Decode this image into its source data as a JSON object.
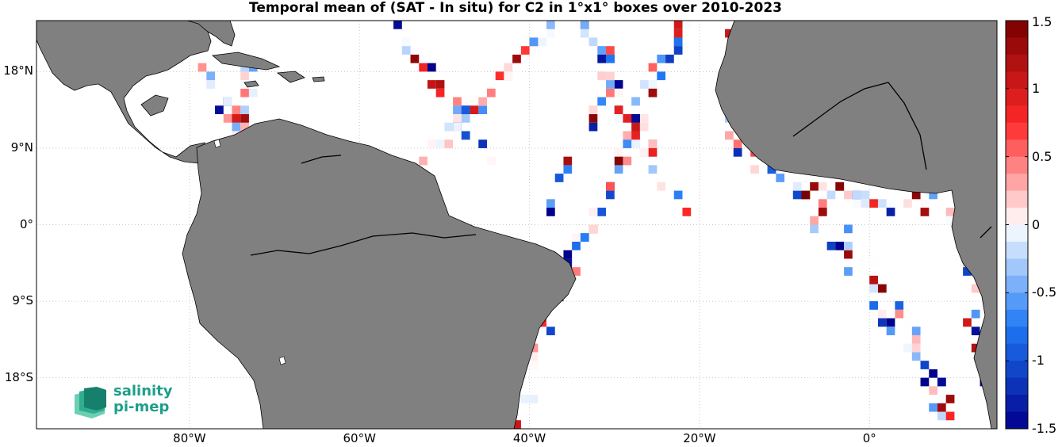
{
  "title": "Temporal mean of (SAT - In situ) for C2 in 1°x1° boxes over 2010-2023",
  "map": {
    "lon_range": [
      -98,
      15
    ],
    "lat_range": [
      -24,
      24
    ],
    "lat_ticks": [
      {
        "value": 18,
        "label": "18°N"
      },
      {
        "value": 9,
        "label": "9°N"
      },
      {
        "value": 0,
        "label": "0°"
      },
      {
        "value": -9,
        "label": "9°S"
      },
      {
        "value": -18,
        "label": "18°S"
      }
    ],
    "lon_ticks": [
      {
        "value": -80,
        "label": "80°W"
      },
      {
        "value": -60,
        "label": "60°W"
      },
      {
        "value": -40,
        "label": "40°W"
      },
      {
        "value": -20,
        "label": "20°W"
      },
      {
        "value": 0,
        "label": "0°"
      }
    ],
    "grid": true,
    "land_color": "#808080",
    "ocean_color": "#ffffff"
  },
  "colorbar": {
    "range": [
      -1.5,
      1.5
    ],
    "tick_labels": [
      "1.5",
      "1",
      "0.5",
      "0",
      "-0.5",
      "-1",
      "-1.5"
    ],
    "colormap": "blue-white-red"
  },
  "logo": {
    "line1": "salinity",
    "line2": "pi-mep",
    "color": "#1f9e8a"
  },
  "tracks": [
    {
      "name": "caribbean",
      "lon": [
        -78,
        -76,
        -74,
        -73
      ],
      "lat": [
        18,
        14,
        11,
        20
      ],
      "spread": 2
    },
    {
      "name": "atlantic-north-1",
      "lon": [
        -56,
        -53,
        -49,
        -47,
        -44
      ],
      "lat": [
        24,
        20,
        14,
        10,
        6
      ],
      "spread": 1
    },
    {
      "name": "atlantic-north-2",
      "lon": [
        -52,
        -46,
        -42,
        -40,
        -37
      ],
      "lat": [
        8,
        14,
        18,
        21,
        24
      ],
      "spread": 2
    },
    {
      "name": "atlantic-mid",
      "lon": [
        -34,
        -31,
        -29,
        -26,
        -24,
        -22
      ],
      "lat": [
        24,
        20,
        14,
        9,
        5,
        2
      ],
      "spread": 2
    },
    {
      "name": "atlantic-diag",
      "lon": [
        -22,
        -25,
        -28,
        -31,
        -34,
        -37
      ],
      "lat": [
        24,
        18,
        10,
        3,
        -2,
        -8
      ],
      "spread": 2
    },
    {
      "name": "brazil-coast",
      "lon": [
        -39,
        -36,
        -33,
        -31,
        -30
      ],
      "lat": [
        0,
        5,
        11,
        15,
        20
      ],
      "spread": 1
    },
    {
      "name": "south-atlantic",
      "lon": [
        -37,
        -38,
        -39,
        -40,
        -41
      ],
      "lat": [
        -8,
        -12,
        -16,
        -20,
        -24
      ],
      "spread": 1
    },
    {
      "name": "equator-east",
      "lon": [
        -12,
        -8,
        -4,
        0,
        4,
        8,
        10
      ],
      "lat": [
        6,
        4,
        4,
        3,
        2,
        3,
        1
      ],
      "spread": 2
    },
    {
      "name": "gulf-guinea-1",
      "lon": [
        -7,
        -4,
        -1,
        2,
        5,
        8
      ],
      "lat": [
        0,
        -2,
        -6,
        -11,
        -15,
        -22
      ],
      "spread": 1
    },
    {
      "name": "gulf-guinea-2",
      "lon": [
        -6,
        -3,
        0,
        3,
        6,
        10
      ],
      "lat": [
        3,
        -1,
        -5,
        -9,
        -13,
        -24
      ],
      "spread": 1
    },
    {
      "name": "africa-west",
      "lon": [
        -17,
        -16,
        -16,
        -17,
        -15,
        -13
      ],
      "lat": [
        24,
        20,
        15,
        11,
        9,
        7
      ],
      "spread": 1
    },
    {
      "name": "angola",
      "lon": [
        11,
        12,
        12,
        13,
        13
      ],
      "lat": [
        -2,
        -6,
        -10,
        -14,
        -20
      ],
      "spread": 1
    }
  ]
}
